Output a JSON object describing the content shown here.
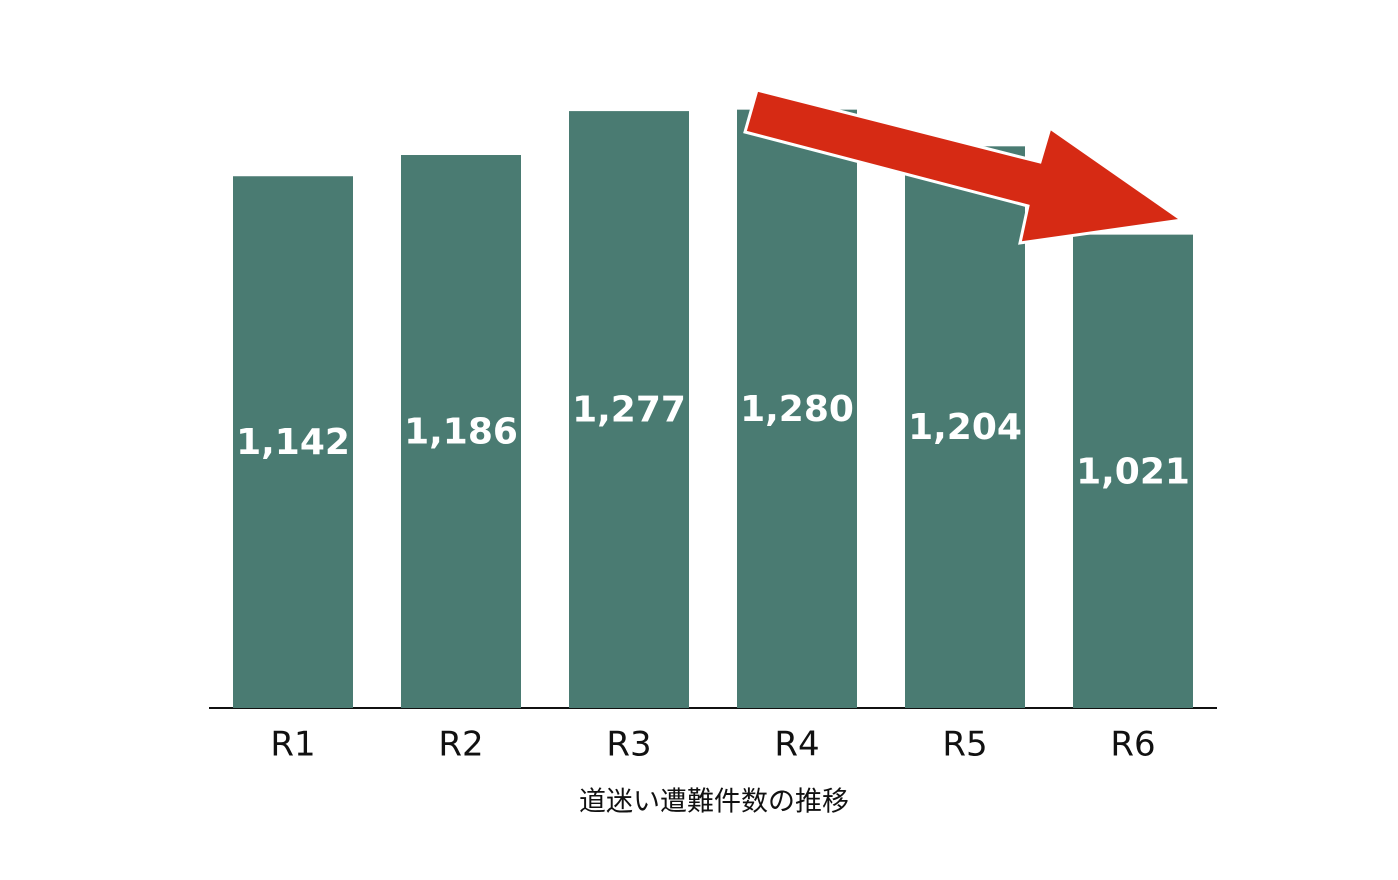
{
  "chart_data": {
    "type": "bar",
    "title": "道迷い遭難件数の推移",
    "categories": [
      "R1",
      "R2",
      "R3",
      "R4",
      "R5",
      "R6"
    ],
    "values": [
      1142,
      1186,
      1277,
      1280,
      1204,
      1021
    ],
    "value_labels": [
      "1,142",
      "1,186",
      "1,277",
      "1,280",
      "1,204",
      "1,021"
    ],
    "color": "#4a7b72",
    "ylim": [
      40,
      1300
    ]
  }
}
